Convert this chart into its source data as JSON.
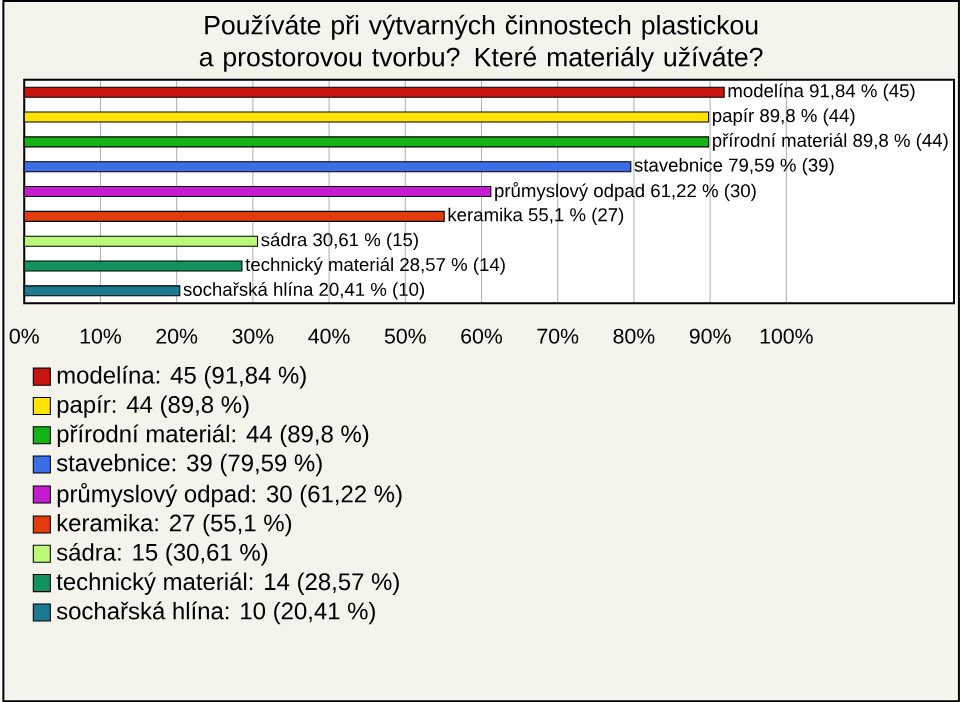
{
  "chart_data": {
    "type": "bar",
    "orientation": "horizontal",
    "title": "Používáte při výtvarných činnostech plastickou a prostorovou tvorbu? Které materiály užíváte?",
    "categories": [
      null,
      null,
      null,
      null,
      null,
      null,
      null,
      null,
      null
    ],
    "series": [
      {
        "name": "modelína: 45 (91,84 %)",
        "color": "#c8160e",
        "values": [
          91.84,
          null,
          null,
          null,
          null,
          null,
          null,
          null,
          null
        ],
        "value_labels": [
          "modelína 91,84 % (45)",
          null,
          null,
          null,
          null,
          null,
          null,
          null,
          null
        ]
      },
      {
        "name": "papír: 44 (89,8 %)",
        "color": "#ffe400",
        "values": [
          null,
          89.8,
          null,
          null,
          null,
          null,
          null,
          null,
          null
        ],
        "value_labels": [
          null,
          "papír 89,8 % (44)",
          null,
          null,
          null,
          null,
          null,
          null,
          null
        ]
      },
      {
        "name": "přírodní materiál: 44 (89,8 %)",
        "color": "#14b414",
        "values": [
          null,
          null,
          89.8,
          null,
          null,
          null,
          null,
          null,
          null
        ],
        "value_labels": [
          null,
          null,
          "přírodní materiál 89,8 % (44)",
          null,
          null,
          null,
          null,
          null,
          null
        ]
      },
      {
        "name": "stavebnice: 39 (79,59 %)",
        "color": "#3c6ee8",
        "values": [
          null,
          null,
          null,
          79.59,
          null,
          null,
          null,
          null,
          null
        ],
        "value_labels": [
          null,
          null,
          null,
          "stavebnice 79,59 % (39)",
          null,
          null,
          null,
          null,
          null
        ]
      },
      {
        "name": "průmyslový odpad: 30 (61,22 %)",
        "color": "#c41cd0",
        "values": [
          null,
          null,
          null,
          null,
          61.22,
          null,
          null,
          null,
          null
        ],
        "value_labels": [
          null,
          null,
          null,
          null,
          "průmyslový odpad 61,22 % (30)",
          null,
          null,
          null,
          null
        ]
      },
      {
        "name": "keramika: 27 (55,1 %)",
        "color": "#e23c0c",
        "values": [
          null,
          null,
          null,
          null,
          null,
          55.1,
          null,
          null,
          null
        ],
        "value_labels": [
          null,
          null,
          null,
          null,
          null,
          "keramika 55,1 % (27)",
          null,
          null,
          null
        ]
      },
      {
        "name": "sádra: 15 (30,61 %)",
        "color": "#bcf878",
        "values": [
          null,
          null,
          null,
          null,
          null,
          null,
          30.61,
          null,
          null
        ],
        "value_labels": [
          null,
          null,
          null,
          null,
          null,
          null,
          "sádra 30,61 % (15)",
          null,
          null
        ]
      },
      {
        "name": "technický materiál: 14 (28,57 %)",
        "color": "#12925c",
        "values": [
          null,
          null,
          null,
          null,
          null,
          null,
          null,
          28.57,
          null
        ],
        "value_labels": [
          null,
          null,
          null,
          null,
          null,
          null,
          null,
          "technický materiál 28,57 % (14)",
          null
        ]
      },
      {
        "name": "sochařská hlína: 10 (20,41 %)",
        "color": "#1c7a90",
        "values": [
          null,
          null,
          null,
          null,
          null,
          null,
          null,
          null,
          20.41
        ],
        "value_labels": [
          null,
          null,
          null,
          null,
          null,
          null,
          null,
          null,
          "sochařská hlína 20,41 % (10)"
        ]
      }
    ],
    "xlim": [
      0,
      122
    ],
    "xticks": [
      {
        "value": 0,
        "label": "0%"
      },
      {
        "value": 10,
        "label": "10%"
      },
      {
        "value": 20,
        "label": "20%"
      },
      {
        "value": 30,
        "label": "30%"
      },
      {
        "value": 40,
        "label": "40%"
      },
      {
        "value": 50,
        "label": "50%"
      },
      {
        "value": 60,
        "label": "60%"
      },
      {
        "value": 70,
        "label": "70%"
      },
      {
        "value": 80,
        "label": "80%"
      },
      {
        "value": 90,
        "label": "90%"
      },
      {
        "value": 100,
        "label": "100%"
      }
    ],
    "grid": "x",
    "legend": "bottom"
  }
}
